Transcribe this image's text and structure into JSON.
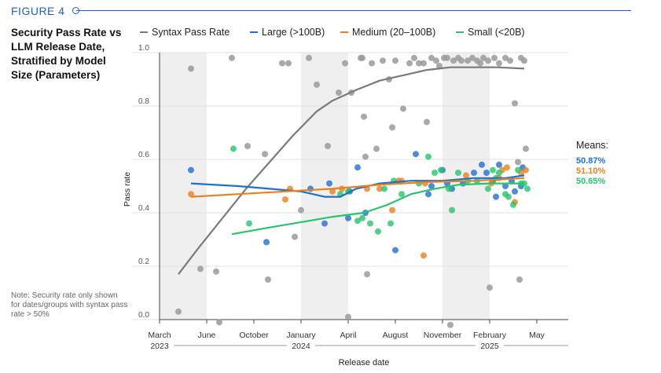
{
  "figure_label": "FIGURE 4",
  "title": "Security Pass Rate vs LLM Release Date, Stratified by Model Size (Parameters)",
  "note": "Note: Security rate only shown for dates/groups with syntax pass rate > 50%",
  "means": {
    "heading": "Means:",
    "large": "50.87%",
    "medium": "51.10%",
    "small": "50.65%"
  },
  "colors": {
    "syntax": "#7a7a7a",
    "syntax_dot": "#9a9a9a",
    "large": "#1f6fd1",
    "medium": "#e8821e",
    "small": "#27c46b",
    "accent": "#1f5fbf",
    "band": "#efefef"
  },
  "chart_data": {
    "type": "scatter",
    "xlabel": "Release date",
    "ylabel": "Pass rate",
    "xlim": [
      0,
      26
    ],
    "ylim": [
      0,
      1.0
    ],
    "x_unit": "months since March 2023",
    "x_ticks": [
      {
        "x": 0,
        "label": "March",
        "sub": "2023"
      },
      {
        "x": 3,
        "label": "June",
        "sub": ""
      },
      {
        "x": 6,
        "label": "October",
        "sub": ""
      },
      {
        "x": 9,
        "label": "January",
        "sub": "2024"
      },
      {
        "x": 12,
        "label": "April",
        "sub": ""
      },
      {
        "x": 15,
        "label": "August",
        "sub": ""
      },
      {
        "x": 18,
        "label": "November",
        "sub": ""
      },
      {
        "x": 21,
        "label": "February",
        "sub": "2025"
      },
      {
        "x": 24,
        "label": "May",
        "sub": ""
      }
    ],
    "y_ticks": [
      {
        "y": 0.0,
        "label": "0.0"
      },
      {
        "y": 0.2,
        "label": "0.2"
      },
      {
        "y": 0.4,
        "label": "0.4"
      },
      {
        "y": 0.6,
        "label": "0.6"
      },
      {
        "y": 0.8,
        "label": "0.8"
      },
      {
        "y": 1.0,
        "label": "1.0"
      }
    ],
    "bands": [
      [
        0,
        3
      ],
      [
        9,
        12
      ],
      [
        18,
        21
      ]
    ],
    "legend": [
      {
        "key": "syntax",
        "label": "Syntax Pass Rate"
      },
      {
        "key": "large",
        "label": "Large (>100B)"
      },
      {
        "key": "medium",
        "label": "Medium (20–100B)"
      },
      {
        "key": "small",
        "label": "Small (<20B)"
      }
    ],
    "series": [
      {
        "name": "Syntax Pass Rate",
        "key": "syntax",
        "points": [
          [
            1.2,
            0.03
          ],
          [
            2.0,
            0.94
          ],
          [
            2.6,
            0.19
          ],
          [
            3.6,
            0.18
          ],
          [
            3.8,
            -0.01
          ],
          [
            4.6,
            0.98
          ],
          [
            5.6,
            0.65
          ],
          [
            6.7,
            0.62
          ],
          [
            6.9,
            0.15
          ],
          [
            7.8,
            0.96
          ],
          [
            8.2,
            0.96
          ],
          [
            8.6,
            0.31
          ],
          [
            9.0,
            0.41
          ],
          [
            9.5,
            0.98
          ],
          [
            10.0,
            0.88
          ],
          [
            10.7,
            0.65
          ],
          [
            11.4,
            0.85
          ],
          [
            11.8,
            0.96
          ],
          [
            12.0,
            0.01
          ],
          [
            12.2,
            0.85
          ],
          [
            12.8,
            0.98
          ],
          [
            12.9,
            0.98
          ],
          [
            13.0,
            0.76
          ],
          [
            13.1,
            0.61
          ],
          [
            13.2,
            0.17
          ],
          [
            13.5,
            0.96
          ],
          [
            13.8,
            0.64
          ],
          [
            14.2,
            0.97
          ],
          [
            14.6,
            0.9
          ],
          [
            14.8,
            0.72
          ],
          [
            15.0,
            0.97
          ],
          [
            15.5,
            0.79
          ],
          [
            15.9,
            0.96
          ],
          [
            16.2,
            0.98
          ],
          [
            16.5,
            0.96
          ],
          [
            16.8,
            0.96
          ],
          [
            17.0,
            0.74
          ],
          [
            17.3,
            0.98
          ],
          [
            17.6,
            0.97
          ],
          [
            17.8,
            0.95
          ],
          [
            18.1,
            0.98
          ],
          [
            18.3,
            0.98
          ],
          [
            18.5,
            -0.02
          ],
          [
            18.7,
            0.97
          ],
          [
            19.0,
            0.98
          ],
          [
            19.2,
            0.97
          ],
          [
            19.6,
            0.97
          ],
          [
            19.9,
            0.98
          ],
          [
            20.2,
            0.97
          ],
          [
            20.4,
            0.96
          ],
          [
            20.6,
            0.98
          ],
          [
            20.9,
            0.97
          ],
          [
            21.0,
            0.12
          ],
          [
            21.3,
            0.98
          ],
          [
            21.6,
            0.96
          ],
          [
            22.0,
            0.98
          ],
          [
            22.3,
            0.97
          ],
          [
            22.6,
            0.81
          ],
          [
            22.8,
            0.59
          ],
          [
            22.9,
            0.15
          ],
          [
            23.0,
            0.98
          ],
          [
            23.2,
            0.97
          ],
          [
            23.3,
            0.64
          ]
        ],
        "trend": [
          [
            1.2,
            0.17
          ],
          [
            2.5,
            0.27
          ],
          [
            4.0,
            0.38
          ],
          [
            5.5,
            0.49
          ],
          [
            7.0,
            0.59
          ],
          [
            8.5,
            0.69
          ],
          [
            10.0,
            0.78
          ],
          [
            11.0,
            0.82
          ],
          [
            12.5,
            0.86
          ],
          [
            14.0,
            0.895
          ],
          [
            15.5,
            0.915
          ],
          [
            17.0,
            0.935
          ],
          [
            18.5,
            0.945
          ],
          [
            20.0,
            0.945
          ],
          [
            21.5,
            0.945
          ],
          [
            23.2,
            0.94
          ]
        ]
      },
      {
        "name": "Large (>100B)",
        "key": "large",
        "points": [
          [
            2.0,
            0.56
          ],
          [
            6.8,
            0.29
          ],
          [
            9.6,
            0.49
          ],
          [
            10.5,
            0.36
          ],
          [
            10.8,
            0.51
          ],
          [
            12.0,
            0.38
          ],
          [
            12.1,
            0.48
          ],
          [
            12.6,
            0.57
          ],
          [
            13.1,
            0.4
          ],
          [
            15.0,
            0.26
          ],
          [
            16.3,
            0.62
          ],
          [
            17.1,
            0.47
          ],
          [
            17.3,
            0.5
          ],
          [
            18.0,
            0.56
          ],
          [
            18.3,
            0.51
          ],
          [
            18.6,
            0.49
          ],
          [
            19.3,
            0.51
          ],
          [
            20.0,
            0.55
          ],
          [
            20.5,
            0.58
          ],
          [
            20.8,
            0.55
          ],
          [
            21.2,
            0.52
          ],
          [
            21.4,
            0.46
          ],
          [
            21.6,
            0.58
          ],
          [
            22.0,
            0.5
          ],
          [
            22.4,
            0.52
          ],
          [
            22.6,
            0.48
          ],
          [
            23.0,
            0.5
          ],
          [
            23.1,
            0.57
          ]
        ],
        "trend": [
          [
            2.0,
            0.51
          ],
          [
            5.0,
            0.5
          ],
          [
            7.0,
            0.49
          ],
          [
            9.0,
            0.48
          ],
          [
            10.5,
            0.46
          ],
          [
            11.5,
            0.46
          ],
          [
            12.5,
            0.49
          ],
          [
            14.0,
            0.51
          ],
          [
            16.0,
            0.52
          ],
          [
            18.0,
            0.52
          ],
          [
            20.0,
            0.53
          ],
          [
            22.0,
            0.53
          ],
          [
            23.2,
            0.54
          ]
        ]
      },
      {
        "name": "Medium (20–100B)",
        "key": "medium",
        "points": [
          [
            2.0,
            0.47
          ],
          [
            8.0,
            0.45
          ],
          [
            8.3,
            0.49
          ],
          [
            11.0,
            0.48
          ],
          [
            11.6,
            0.49
          ],
          [
            13.2,
            0.49
          ],
          [
            14.0,
            0.49
          ],
          [
            14.8,
            0.41
          ],
          [
            15.2,
            0.52
          ],
          [
            15.4,
            0.52
          ],
          [
            16.8,
            0.24
          ],
          [
            16.9,
            0.51
          ],
          [
            19.5,
            0.54
          ],
          [
            21.1,
            0.51
          ],
          [
            21.6,
            0.53
          ],
          [
            21.8,
            0.56
          ],
          [
            22.1,
            0.57
          ],
          [
            22.6,
            0.44
          ],
          [
            23.0,
            0.55
          ],
          [
            23.3,
            0.56
          ]
        ],
        "trend": [
          [
            2.0,
            0.46
          ],
          [
            5.0,
            0.47
          ],
          [
            8.0,
            0.48
          ],
          [
            11.0,
            0.49
          ],
          [
            14.0,
            0.505
          ],
          [
            17.0,
            0.515
          ],
          [
            20.0,
            0.52
          ],
          [
            23.2,
            0.53
          ]
        ]
      },
      {
        "name": "Small (<20B)",
        "key": "small",
        "points": [
          [
            4.7,
            0.64
          ],
          [
            5.7,
            0.36
          ],
          [
            11.5,
            0.47
          ],
          [
            12.0,
            0.48
          ],
          [
            12.6,
            0.37
          ],
          [
            12.9,
            0.38
          ],
          [
            13.4,
            0.36
          ],
          [
            13.9,
            0.33
          ],
          [
            14.3,
            0.49
          ],
          [
            14.7,
            0.36
          ],
          [
            14.9,
            0.52
          ],
          [
            15.4,
            0.47
          ],
          [
            16.5,
            0.51
          ],
          [
            17.1,
            0.61
          ],
          [
            17.5,
            0.55
          ],
          [
            17.9,
            0.56
          ],
          [
            18.4,
            0.49
          ],
          [
            18.6,
            0.41
          ],
          [
            19.0,
            0.55
          ],
          [
            19.6,
            0.52
          ],
          [
            20.2,
            0.52
          ],
          [
            20.9,
            0.49
          ],
          [
            21.2,
            0.56
          ],
          [
            21.4,
            0.53
          ],
          [
            21.6,
            0.55
          ],
          [
            22.0,
            0.47
          ],
          [
            22.2,
            0.46
          ],
          [
            22.5,
            0.43
          ],
          [
            22.8,
            0.56
          ],
          [
            23.0,
            0.51
          ],
          [
            23.2,
            0.51
          ],
          [
            23.4,
            0.49
          ]
        ],
        "trend": [
          [
            4.6,
            0.32
          ],
          [
            7.0,
            0.345
          ],
          [
            9.0,
            0.365
          ],
          [
            11.0,
            0.385
          ],
          [
            13.0,
            0.4
          ],
          [
            14.5,
            0.43
          ],
          [
            16.0,
            0.47
          ],
          [
            17.5,
            0.49
          ],
          [
            19.0,
            0.505
          ],
          [
            21.0,
            0.51
          ],
          [
            23.2,
            0.51
          ]
        ]
      }
    ]
  }
}
